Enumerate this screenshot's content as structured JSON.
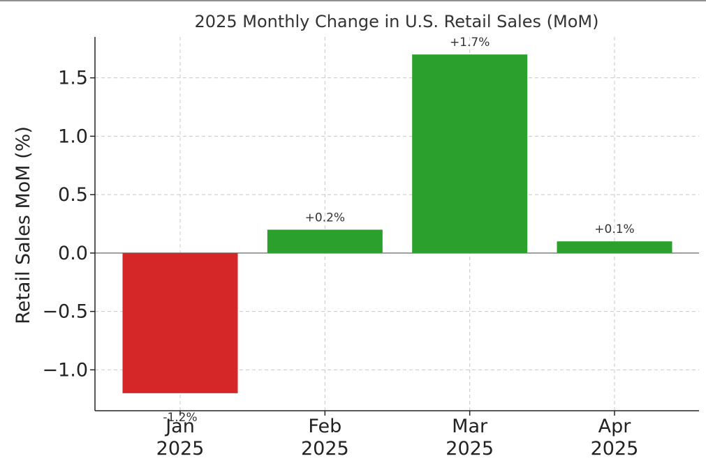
{
  "chart_data": {
    "type": "bar",
    "title": "2025 Monthly Change in U.S. Retail Sales (MoM)",
    "xlabel": "",
    "ylabel": "Retail Sales MoM (%)",
    "categories": [
      [
        "Jan",
        "2025"
      ],
      [
        "Feb",
        "2025"
      ],
      [
        "Mar",
        "2025"
      ],
      [
        "Apr",
        "2025"
      ]
    ],
    "values": [
      -1.2,
      0.2,
      1.7,
      0.1
    ],
    "data_labels": [
      "-1.2%",
      "+0.2%",
      "+1.7%",
      "+0.1%"
    ],
    "ylim": [
      -1.35,
      1.85
    ],
    "yticks": [
      -1.0,
      -0.5,
      0.0,
      0.5,
      1.0,
      1.5
    ],
    "ytick_labels": [
      "−1.0",
      "−0.5",
      "0.0",
      "0.5",
      "1.0",
      "1.5"
    ],
    "grid": true,
    "colors": {
      "positive": "#2ca02c",
      "negative": "#d62728",
      "grid": "#c8c8c8",
      "zero_line": "#808080",
      "axis": "#222222"
    }
  }
}
